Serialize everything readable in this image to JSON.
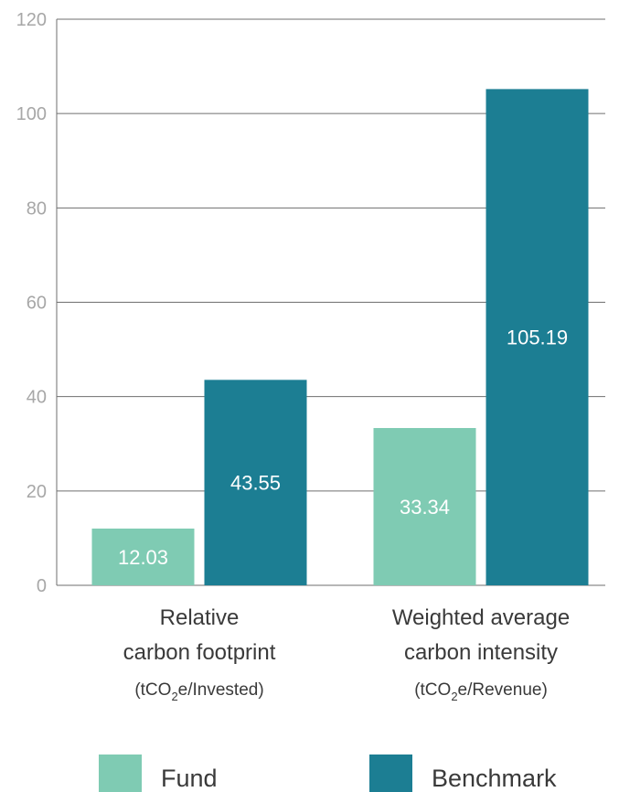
{
  "chart_data": {
    "type": "bar",
    "categories": [
      "Relative carbon footprint",
      "Weighted average carbon intensity"
    ],
    "category_lines": [
      [
        "Relative",
        "carbon footprint"
      ],
      [
        "Weighted average",
        "carbon intensity"
      ]
    ],
    "category_units": [
      {
        "prefix": "(tCO",
        "sub": "2",
        "suffix": "e/Invested)"
      },
      {
        "prefix": "(tCO",
        "sub": "2",
        "suffix": "e/Revenue)"
      }
    ],
    "series": [
      {
        "name": "Fund",
        "color": "#7fcbb3",
        "values": [
          12.03,
          33.34
        ],
        "labels": [
          "12.03",
          "33.34"
        ]
      },
      {
        "name": "Benchmark",
        "color": "#1c7e93",
        "values": [
          43.55,
          105.19
        ],
        "labels": [
          "43.55",
          "105.19"
        ]
      }
    ],
    "ylim": [
      0,
      120
    ],
    "yticks": [
      0,
      20,
      40,
      60,
      80,
      100,
      120
    ],
    "grid": true,
    "legend_position": "bottom",
    "xlabel": "",
    "ylabel": ""
  }
}
